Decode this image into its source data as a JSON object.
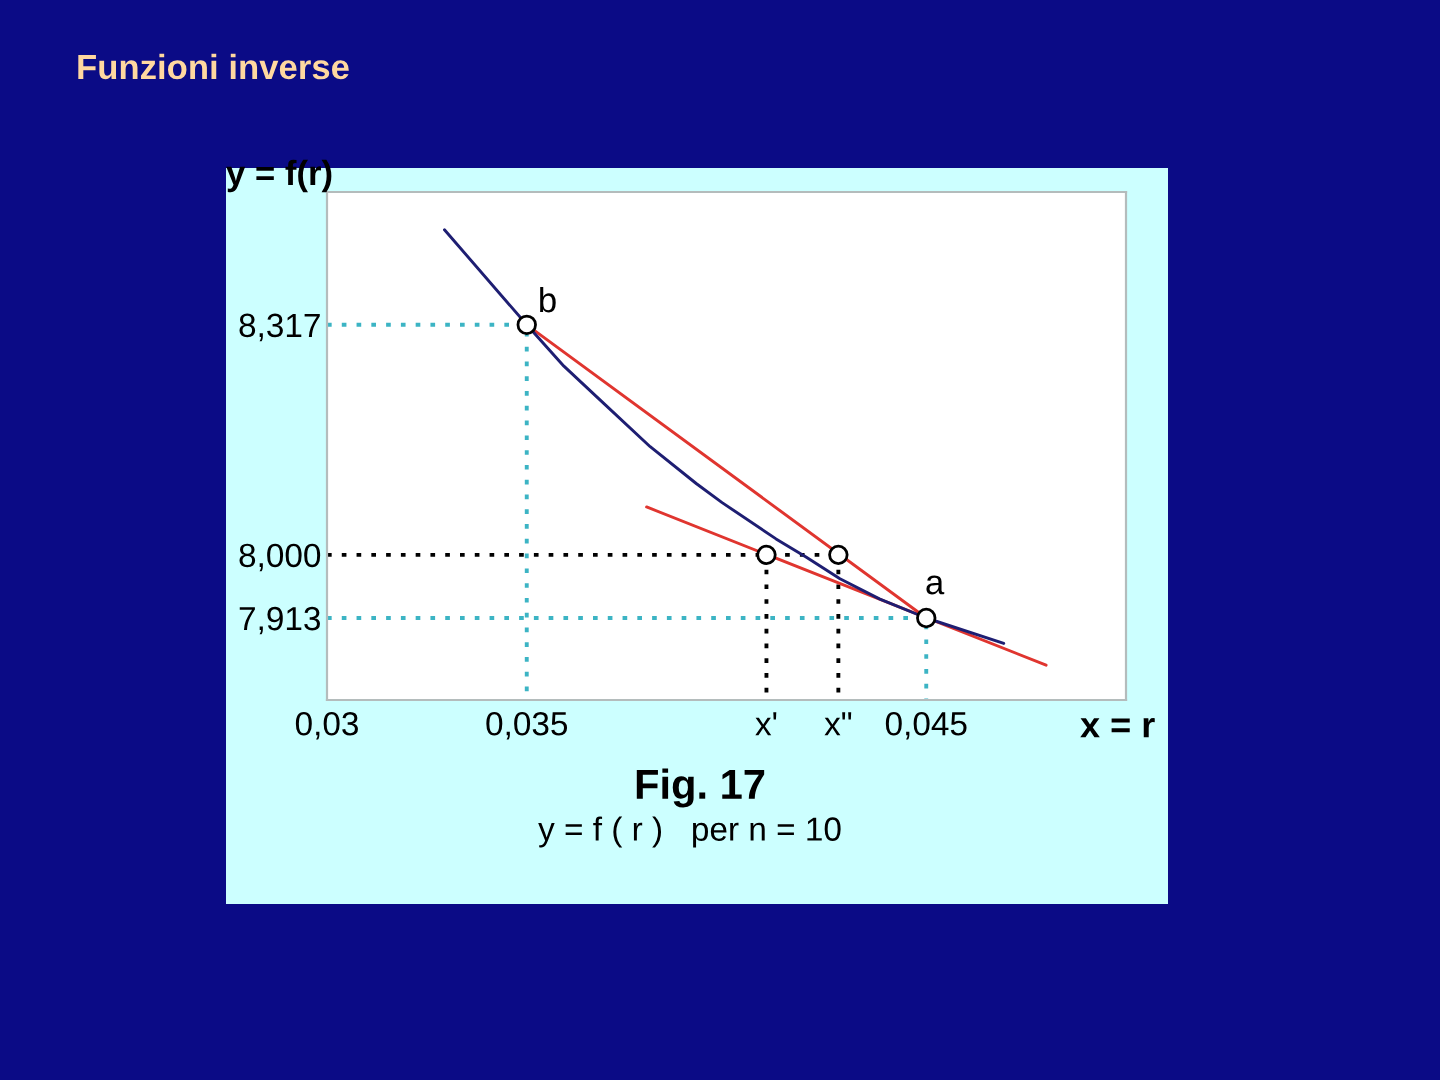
{
  "chart_data": {
    "type": "line",
    "title": "Funzioni inverse",
    "subtitle": "Fig. 17",
    "xlabel": "x = r",
    "ylabel": "y = f(r)",
    "annotations": [
      {
        "text": "b",
        "x": 0.035,
        "y": 8.317
      },
      {
        "text": "a",
        "x": 0.045,
        "y": 7.913
      },
      "y = f ( r )   per n = 10"
    ],
    "xlim": [
      0.03,
      0.05
    ],
    "ylim": [
      7.8,
      8.5
    ],
    "xticks": [
      {
        "value": 0.03,
        "label": "0,03"
      },
      {
        "value": 0.035,
        "label": "0,035"
      },
      {
        "value": 0.041,
        "label": "x'"
      },
      {
        "value": 0.0428,
        "label": "x\""
      },
      {
        "value": 0.045,
        "label": "0,045"
      }
    ],
    "yticks": [
      {
        "value": 7.913,
        "label": "7,913"
      },
      {
        "value": 8.0,
        "label": "8,000"
      },
      {
        "value": 8.317,
        "label": "8,317"
      }
    ],
    "grid": false,
    "series": [
      {
        "color": "#3cb4c4",
        "line_style": "dotted",
        "marker": "none",
        "x": [
          0.03,
          0.035,
          0.035
        ],
        "values": [
          8.317,
          8.317,
          7.8
        ]
      },
      {
        "color": "#3cb4c4",
        "line_style": "dotted",
        "marker": "none",
        "x": [
          0.03,
          0.045,
          0.045
        ],
        "values": [
          7.913,
          7.913,
          7.8
        ]
      },
      {
        "color": "#000000",
        "line_style": "dotted",
        "marker": "none",
        "x": [
          0.03,
          0.0428
        ],
        "values": [
          8.0,
          8.0
        ]
      },
      {
        "color": "#000000",
        "line_style": "dotted",
        "marker": "none",
        "x": [
          0.041,
          0.041
        ],
        "values": [
          8.0,
          7.8
        ]
      },
      {
        "color": "#000000",
        "line_style": "dotted",
        "marker": "none",
        "x": [
          0.0428,
          0.0428
        ],
        "values": [
          8.0,
          7.8
        ]
      },
      {
        "color": "#e0352f",
        "line_style": "solid",
        "marker": "none",
        "x": [
          0.035,
          0.045
        ],
        "values": [
          8.317,
          7.913
        ]
      },
      {
        "color": "#e0352f",
        "line_style": "solid",
        "marker": "none",
        "x": [
          0.038,
          0.048
        ],
        "values": [
          8.066,
          7.848
        ]
      },
      {
        "color": "#1e1e72",
        "line_style": "solid",
        "marker": "none",
        "x": [
          0.03294,
          0.035,
          0.03593,
          0.03692,
          0.03809,
          0.03925,
          0.03989,
          0.04124,
          0.04199,
          0.04284,
          0.04384,
          0.045,
          0.04694
        ],
        "values": [
          8.448,
          8.317,
          8.26,
          8.209,
          8.149,
          8.098,
          8.072,
          8.022,
          7.997,
          7.967,
          7.939,
          7.913,
          7.878
        ]
      },
      {
        "type": "scatter",
        "color": "#000000",
        "marker": "circle",
        "x": [
          0.035,
          0.041,
          0.0428,
          0.045
        ],
        "values": [
          8.317,
          8.0,
          8.0,
          7.913
        ]
      }
    ]
  }
}
